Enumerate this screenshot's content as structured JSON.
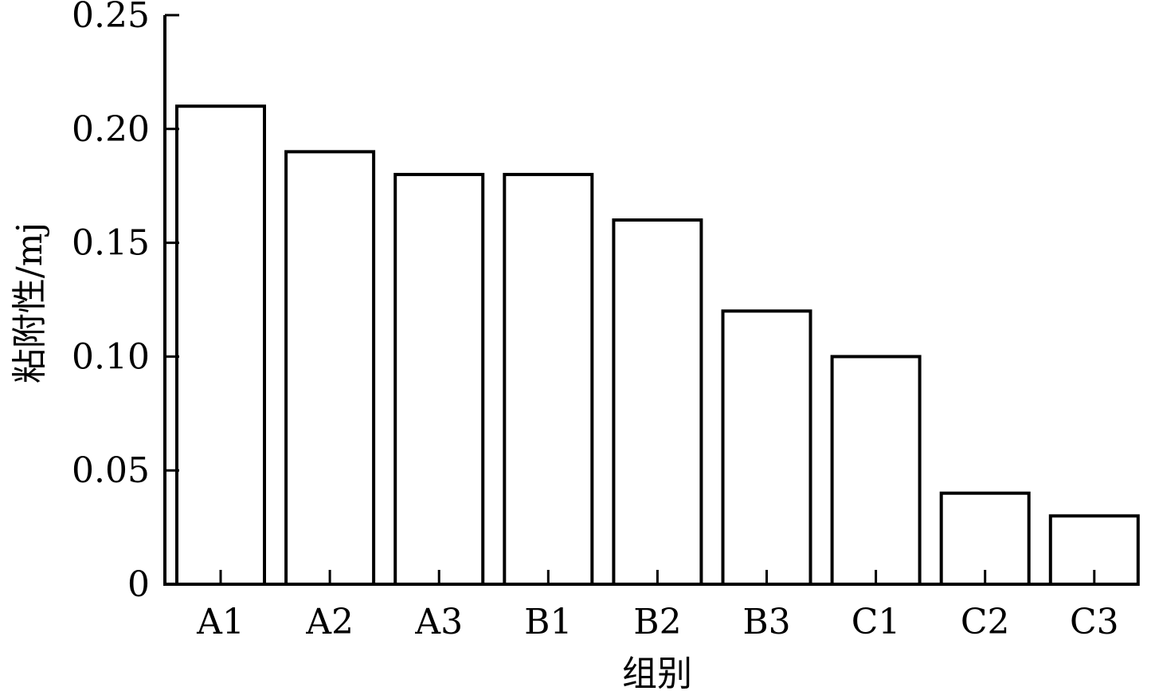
{
  "chart_data": {
    "type": "bar",
    "title": "",
    "xlabel": "组别",
    "ylabel": "粘附性/mj",
    "categories": [
      "A1",
      "A2",
      "A3",
      "B1",
      "B2",
      "B3",
      "C1",
      "C2",
      "C3"
    ],
    "values": [
      0.21,
      0.19,
      0.18,
      0.18,
      0.16,
      0.12,
      0.1,
      0.04,
      0.03
    ],
    "ylim": [
      0,
      0.25
    ],
    "yticks": [
      "0",
      "0.05",
      "0.10",
      "0.15",
      "0.20",
      "0.25"
    ],
    "grid": false,
    "bar_fill": "#ffffff",
    "bar_stroke": "#000000"
  }
}
